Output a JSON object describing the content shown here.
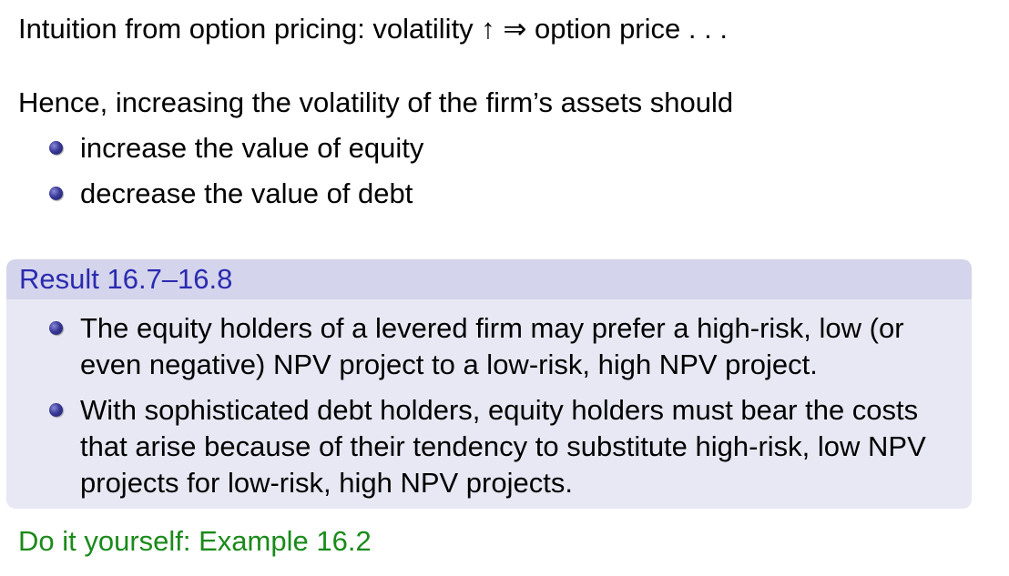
{
  "intro": {
    "text": "Intuition from option pricing: volatility ↑ ⇒ option price . . ."
  },
  "hence": {
    "text": "Hence, increasing the volatility of the firm’s assets should",
    "bullets": [
      "increase the value of equity",
      "decrease the value of debt"
    ]
  },
  "result": {
    "title": "Result 16.7–16.8",
    "bullets": [
      "The equity holders of a levered firm may prefer a high-risk, low (or even negative) NPV project to a low-risk, high NPV project.",
      "With sophisticated debt holders, equity holders must bear the costs that arise because of their tendency to substitute high-risk, low NPV projects for low-risk, high NPV projects."
    ],
    "header_color": "#2a2ab0",
    "body_bg": "#e8e8f4",
    "header_bg": "#d4d4ec"
  },
  "exercise": {
    "text": "Do it yourself: Example 16.2",
    "color": "#1a8a1a"
  }
}
